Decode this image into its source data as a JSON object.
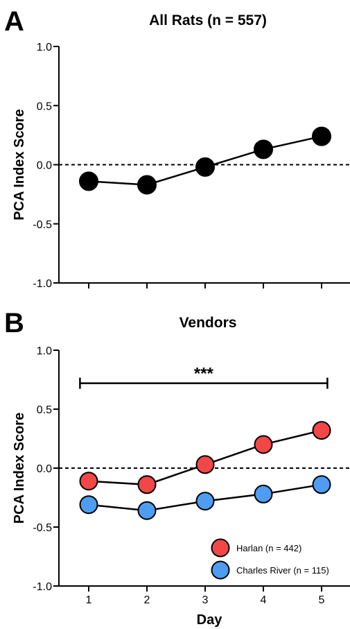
{
  "panels": [
    {
      "letter": "A"
    },
    {
      "letter": "B"
    }
  ],
  "chart_data": [
    {
      "type": "line",
      "title": "All Rats  (n = 557)",
      "xlabel": "",
      "ylabel": "PCA Index Score",
      "x": [
        1,
        2,
        3,
        4,
        5
      ],
      "xticks": [
        "",
        "",
        "",
        "",
        ""
      ],
      "ylim": [
        -1.0,
        1.0
      ],
      "yticks": [
        "1.0",
        "0.5",
        "0.0",
        "-0.5",
        "-1.0"
      ],
      "reference_line": 0.0,
      "grid": false,
      "series": [
        {
          "color": "#000000",
          "values": [
            -0.14,
            -0.17,
            -0.02,
            0.13,
            0.24
          ]
        }
      ]
    },
    {
      "type": "line",
      "title": "Vendors",
      "xlabel": "Day",
      "ylabel": "PCA Index Score",
      "x": [
        1,
        2,
        3,
        4,
        5
      ],
      "xticks": [
        "1",
        "2",
        "3",
        "4",
        "5"
      ],
      "ylim": [
        -1.0,
        1.0
      ],
      "yticks": [
        "1.0",
        "0.5",
        "0.0",
        "-0.5",
        "-1.0"
      ],
      "reference_line": 0.0,
      "grid": false,
      "legend_position": "bottom-right",
      "significance": {
        "label": "***",
        "x_from": 0.85,
        "x_to": 5.1,
        "y": 0.72
      },
      "series": [
        {
          "name": "Harlan (n = 442)",
          "color": "#f24747",
          "values": [
            -0.11,
            -0.14,
            0.03,
            0.2,
            0.32
          ]
        },
        {
          "name": "Charles River (n = 115)",
          "color": "#4e9df2",
          "values": [
            -0.31,
            -0.36,
            -0.28,
            -0.22,
            -0.14
          ]
        }
      ]
    }
  ]
}
